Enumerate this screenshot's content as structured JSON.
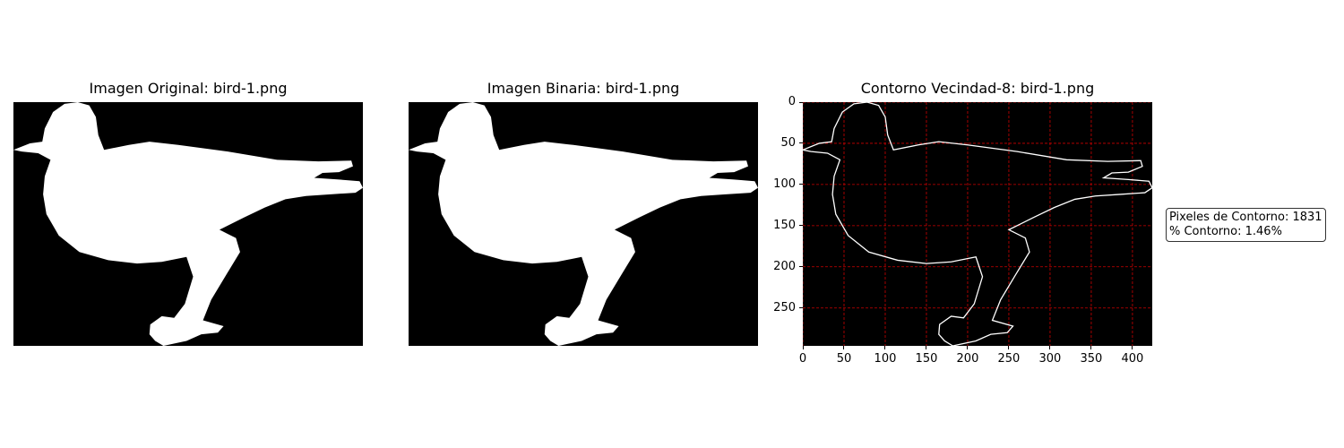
{
  "panels": [
    {
      "title": "Imagen Original: bird-1.png"
    },
    {
      "title": "Imagen Binaria: bird-1.png"
    },
    {
      "title": "Contorno Vecindad-8: bird-1.png"
    }
  ],
  "contour_axes": {
    "x_ticks": [
      "0",
      "50",
      "100",
      "150",
      "200",
      "250",
      "300",
      "350",
      "400"
    ],
    "y_ticks": [
      "0",
      "50",
      "100",
      "150",
      "200",
      "250"
    ],
    "xlim": [
      0,
      424
    ],
    "ylim": [
      296,
      0
    ],
    "grid": true,
    "grid_color": "#cc0000",
    "contour_color": "#ffffff",
    "background": "#000000"
  },
  "stats": {
    "contour_pixels": "Pixeles de Contorno: 1831",
    "contour_percent": "% Contorno: 1.46%"
  },
  "colors": {
    "silhouette": "#ffffff",
    "image_background": "#000000"
  }
}
